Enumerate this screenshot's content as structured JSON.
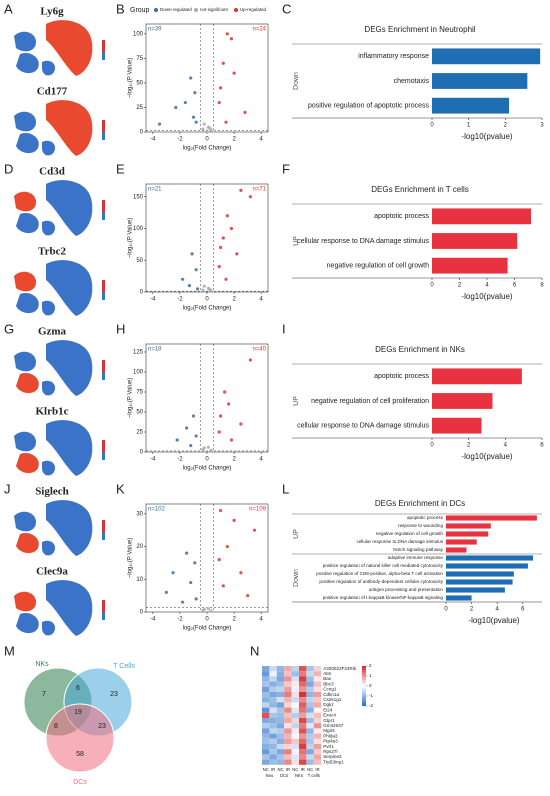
{
  "panels": [
    "A",
    "B",
    "C",
    "D",
    "E",
    "F",
    "G",
    "H",
    "I",
    "J",
    "K",
    "L",
    "M",
    "N"
  ],
  "umap": [
    "Ly6g",
    "Cd177",
    "Cd3d",
    "Trbc2",
    "Gzma",
    "Klrb1c",
    "Siglech",
    "Clec9a"
  ],
  "chart_data": [
    {
      "type": "scatter",
      "xlabel": "log₂(Fold Change)",
      "ylabel": "−log₁₀(P Value)",
      "legend_title": "Group",
      "n_down": "n=39",
      "n_up": "n=24",
      "xlim": [
        -4.5,
        4.5
      ],
      "xticks": [
        -4,
        -2,
        0,
        2,
        4
      ],
      "ylim": [
        0,
        110
      ],
      "yticks": [
        0,
        25,
        50,
        75,
        100
      ],
      "vlines": [
        -0.5,
        0.5
      ],
      "hline": 1.3,
      "series": [
        {
          "name": "Down-regulated",
          "color": "#3b6ea5",
          "x": [
            -1.2,
            -0.9,
            -1.6,
            -2.3,
            -1.0,
            -0.8,
            -3.5
          ],
          "values": [
            55,
            40,
            30,
            25,
            15,
            10,
            8
          ]
        },
        {
          "name": "not-significant",
          "color": "#aaaaaa",
          "x": [
            -0.3,
            0.1,
            0.3,
            -0.2,
            0.2,
            0.0
          ],
          "values": [
            3,
            5,
            2,
            8,
            4,
            1
          ]
        },
        {
          "name": "Up-regulated",
          "color": "#e03030",
          "x": [
            1.5,
            1.8,
            1.2,
            2.0,
            1.0,
            0.9,
            2.8,
            1.4
          ],
          "values": [
            100,
            95,
            70,
            60,
            45,
            30,
            20,
            10
          ]
        }
      ]
    },
    {
      "type": "bar",
      "title": "DEGs Enrichment in Neutrophil",
      "xlabel": "-log10(pvalue)",
      "xlim": [
        0,
        3
      ],
      "xticks": [
        0,
        1,
        2,
        3
      ],
      "groups": [
        {
          "label": "Down",
          "color": "#1f6db3",
          "categories": [
            "inflammatory response",
            "chemotaxis",
            "positive regulation of apoptotic process"
          ],
          "values": [
            2.95,
            2.6,
            2.1
          ]
        }
      ]
    },
    {
      "type": "scatter",
      "xlabel": "log₂(Fold Change)",
      "ylabel": "−log₁₀(P Value)",
      "n_down": "n=21",
      "n_up": "n=71",
      "xlim": [
        -4.5,
        4.5
      ],
      "xticks": [
        -4,
        -2,
        0,
        2,
        4
      ],
      "ylim": [
        0,
        170
      ],
      "yticks": [
        0,
        50,
        100,
        150
      ],
      "vlines": [
        -0.5,
        0.5
      ],
      "hline": 1.3,
      "series": [
        {
          "color": "#3b6ea5",
          "x": [
            -1.1,
            -0.8,
            -1.8,
            -1.3,
            -0.7
          ],
          "values": [
            60,
            35,
            20,
            10,
            5
          ]
        },
        {
          "color": "#aaaaaa",
          "x": [
            -0.3,
            0.1,
            0.3,
            -0.2,
            0.2
          ],
          "values": [
            3,
            6,
            2,
            9,
            4
          ]
        },
        {
          "color": "#e03030",
          "x": [
            2.5,
            3.2,
            1.5,
            1.8,
            1.2,
            1.0,
            2.2,
            0.9,
            1.4
          ],
          "values": [
            160,
            150,
            120,
            100,
            85,
            70,
            60,
            40,
            20
          ]
        }
      ]
    },
    {
      "type": "bar",
      "title": "DEGs Enrichment in T cells",
      "xlabel": "-log10(pvalue)",
      "xlim": [
        0,
        8
      ],
      "xticks": [
        0,
        2,
        4,
        6,
        8
      ],
      "groups": [
        {
          "label": "UP",
          "color": "#e8323f",
          "categories": [
            "apoptotic process",
            "cellular response to DNA damage stimulus",
            "negative regulation of cell growth"
          ],
          "values": [
            7.2,
            6.2,
            5.5
          ]
        }
      ]
    },
    {
      "type": "scatter",
      "xlabel": "log₂(Fold Change)",
      "ylabel": "−log₁₀(P Value)",
      "n_down": "n=18",
      "n_up": "n=40",
      "xlim": [
        -4.5,
        4.5
      ],
      "xticks": [
        -4,
        -2,
        0,
        2,
        4
      ],
      "ylim": [
        0,
        135
      ],
      "yticks": [
        0,
        25,
        50,
        75,
        100,
        125
      ],
      "vlines": [
        -0.5,
        0.5
      ],
      "hline": 1.3,
      "series": [
        {
          "color": "#3b6ea5",
          "x": [
            -1.0,
            -1.5,
            -0.8,
            -2.2,
            -1.2
          ],
          "values": [
            45,
            30,
            20,
            15,
            8
          ]
        },
        {
          "color": "#aaaaaa",
          "x": [
            -0.3,
            0.1,
            0.3,
            -0.2
          ],
          "values": [
            3,
            6,
            2,
            5
          ]
        },
        {
          "color": "#e03030",
          "x": [
            3.2,
            1.3,
            1.6,
            1.0,
            2.5,
            0.9,
            1.8
          ],
          "values": [
            115,
            75,
            60,
            45,
            35,
            25,
            15
          ]
        }
      ]
    },
    {
      "type": "bar",
      "title": "DEGs Enrichment in NKs",
      "xlabel": "-log10(pvalue)",
      "xlim": [
        0,
        6
      ],
      "xticks": [
        0,
        2,
        4,
        6
      ],
      "groups": [
        {
          "label": "UP",
          "color": "#e8323f",
          "categories": [
            "apoptotic process",
            "negative regulation of cell proliferation",
            "cellular response to DNA damage stimulus"
          ],
          "values": [
            4.9,
            3.3,
            2.7
          ]
        }
      ]
    },
    {
      "type": "scatter",
      "xlabel": "log₂(Fold Change)",
      "ylabel": "−log₁₀(P Value)",
      "n_down": "n=102",
      "n_up": "n=109",
      "xlim": [
        -4.5,
        4.5
      ],
      "xticks": [
        -4,
        -2,
        0,
        2,
        4
      ],
      "ylim": [
        0,
        33
      ],
      "yticks": [
        0,
        10,
        20,
        30
      ],
      "vlines": [
        -0.5,
        0.5
      ],
      "hline": 1.3,
      "series": [
        {
          "color": "#3b6ea5",
          "x": [
            -1.5,
            -0.9,
            -2.5,
            -1.2,
            -3.0,
            -0.8,
            -1.8
          ],
          "values": [
            18,
            15,
            12,
            9,
            6,
            4,
            3
          ]
        },
        {
          "color": "#aaaaaa",
          "x": [
            -0.3,
            0.1,
            0.3,
            -0.2
          ],
          "values": [
            0.5,
            1,
            0.3,
            0.8
          ]
        },
        {
          "color": "#e03030",
          "x": [
            1.0,
            2.0,
            3.5,
            1.5,
            0.9,
            2.5,
            1.2,
            3.0
          ],
          "values": [
            31,
            28,
            25,
            20,
            16,
            12,
            8,
            5
          ]
        }
      ]
    },
    {
      "type": "bar",
      "title": "DEGs Enrichment in DCs",
      "xlabel": "-log10(pvalue)",
      "xlim": [
        0,
        7.5
      ],
      "xticks": [
        0,
        2,
        4,
        6
      ],
      "groups": [
        {
          "label": "UP",
          "color": "#e8323f",
          "categories": [
            "apoptotic process",
            "response to wounding",
            "negative regulation of cell growth",
            "cellular response to DNA damage stimulus",
            "Notch signaling pathway"
          ],
          "values": [
            7.1,
            3.5,
            3.3,
            2.4,
            1.6
          ]
        },
        {
          "label": "Down",
          "color": "#1f6db3",
          "categories": [
            "adaptive immune response",
            "positive regulation of natural killer cell mediated cytotoxicity",
            "positive regulation of CD8-positive, alpha-beta T cell activation",
            "positive regulation of antibody-dependent cellular cytotoxicity",
            "antigen processing and presentation",
            "positive regulation of I-kappaB kinase/NF-kappaB signaling"
          ],
          "values": [
            6.8,
            6.4,
            5.3,
            5.2,
            4.6,
            2.0
          ]
        }
      ]
    },
    {
      "type": "venn",
      "sets": [
        {
          "name": "NKs",
          "color": "#2e7d4f"
        },
        {
          "name": "T Cells",
          "color": "#4aa8d8"
        },
        {
          "name": "DCs",
          "color": "#f07080"
        }
      ],
      "regions": [
        7,
        6,
        23,
        19,
        8,
        23,
        58
      ]
    },
    {
      "type": "heatmap",
      "zlim": [
        -2,
        2
      ],
      "zticks": [
        2,
        1,
        0,
        -1,
        -2
      ],
      "columns": [
        "NC",
        "IR",
        "NC",
        "IR",
        "NC",
        "IR",
        "NC",
        "IR"
      ],
      "groups": [
        "Neu",
        "DCs",
        "NKs",
        "T cells"
      ],
      "rows": [
        "A330023F24Rik",
        "Atm",
        "Bax",
        "Bbc3",
        "Ccng1",
        "Cdkn1a",
        "Csnk1g1",
        "Dgkz",
        "Ei24",
        "Exoc4",
        "Gtpr1",
        "Gm42047",
        "Mgmt",
        "Phlda3",
        "Ptp4a3",
        "Pvrl1",
        "Rps27l",
        "Serpine2",
        "Trp53inp1"
      ],
      "matrix": [
        [
          -1.2,
          -0.5,
          -1.0,
          0.8,
          -0.6,
          1.6,
          -0.8,
          0.4
        ],
        [
          -1.4,
          -0.2,
          -1.1,
          0.6,
          -0.9,
          1.2,
          -0.5,
          0.7
        ],
        [
          -1.0,
          -0.6,
          -1.2,
          1.0,
          -0.4,
          1.8,
          -0.9,
          0.2
        ],
        [
          -0.8,
          -1.1,
          -0.9,
          0.5,
          0.2,
          1.4,
          -1.2,
          0.6
        ],
        [
          -1.3,
          -0.7,
          -0.6,
          0.9,
          -0.2,
          1.0,
          -0.7,
          0.3
        ],
        [
          -0.9,
          -1.2,
          -1.1,
          1.2,
          0.3,
          1.9,
          -1.0,
          0.9
        ],
        [
          -1.1,
          -0.9,
          -0.4,
          0.7,
          -0.5,
          1.1,
          -0.6,
          0.5
        ],
        [
          -0.6,
          -1.0,
          -1.3,
          0.4,
          0.1,
          1.5,
          -0.8,
          0.8
        ],
        [
          -1.5,
          -0.4,
          -0.8,
          1.1,
          -0.3,
          1.3,
          -1.1,
          0.1
        ],
        [
          1.6,
          -0.8,
          -0.9,
          0.6,
          -0.7,
          0.9,
          -0.4,
          0.6
        ],
        [
          -1.2,
          -1.1,
          -1.0,
          0.8,
          0.4,
          1.7,
          -0.9,
          0.4
        ],
        [
          -0.7,
          -0.9,
          -1.2,
          0.3,
          -0.6,
          1.2,
          -0.3,
          1.0
        ],
        [
          -1.3,
          -0.6,
          -0.7,
          1.0,
          0.2,
          1.6,
          -1.0,
          0.2
        ],
        [
          -1.0,
          -1.3,
          -0.9,
          0.7,
          -0.1,
          1.0,
          -0.7,
          0.7
        ],
        [
          -0.9,
          -0.7,
          -1.1,
          0.9,
          0.5,
          1.4,
          -0.8,
          0.3
        ],
        [
          -1.1,
          -1.0,
          -0.5,
          0.4,
          -0.4,
          1.8,
          -0.6,
          0.9
        ],
        [
          -1.4,
          -0.8,
          -1.2,
          1.2,
          0.1,
          1.3,
          -1.2,
          0.5
        ],
        [
          -0.8,
          -1.2,
          -0.8,
          0.6,
          -0.3,
          1.1,
          -0.5,
          0.8
        ],
        [
          -1.2,
          -0.9,
          -1.0,
          1.1,
          0.3,
          1.7,
          -0.9,
          0.6
        ]
      ]
    }
  ]
}
